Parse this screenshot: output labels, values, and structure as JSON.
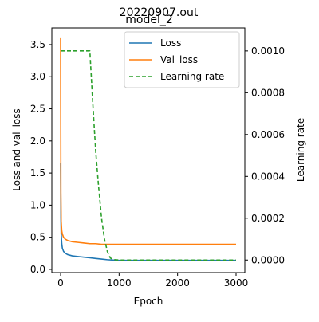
{
  "chart_data": {
    "type": "line",
    "title": "20220907.out",
    "subtitle": "model_2",
    "xlabel": "Epoch",
    "ylabel": "Loss and val_loss",
    "ylabel_right": "Learning rate",
    "xlim": [
      -150,
      3150
    ],
    "ylim": [
      -0.05,
      3.76
    ],
    "ylim_right": [
      -6e-05,
      0.00111
    ],
    "x_ticks": [
      0,
      1000,
      2000,
      3000
    ],
    "y_ticks": [
      0.0,
      0.5,
      1.0,
      1.5,
      2.0,
      2.5,
      3.0,
      3.5
    ],
    "y_right_ticks": [
      0.0,
      0.0002,
      0.0004,
      0.0006,
      0.0008,
      0.001
    ],
    "grid": false,
    "legend_position": "top-right",
    "colors": {
      "loss": "#1f77b4",
      "val_loss": "#ff7f0e",
      "learning_rate": "#2ca02c"
    },
    "series": [
      {
        "name": "Loss",
        "axis": "left",
        "style": "solid",
        "x": [
          0,
          5,
          10,
          20,
          30,
          50,
          80,
          120,
          200,
          300,
          400,
          500,
          600,
          700,
          800,
          900,
          1000,
          1500,
          2000,
          2500,
          3000
        ],
        "values": [
          1.65,
          0.8,
          0.55,
          0.4,
          0.33,
          0.28,
          0.25,
          0.23,
          0.21,
          0.2,
          0.19,
          0.18,
          0.17,
          0.16,
          0.15,
          0.145,
          0.14,
          0.14,
          0.14,
          0.14,
          0.14
        ]
      },
      {
        "name": "Val_loss",
        "axis": "left",
        "style": "solid",
        "x": [
          0,
          2,
          5,
          10,
          20,
          30,
          50,
          80,
          120,
          200,
          300,
          400,
          500,
          600,
          700,
          800,
          1000,
          1500,
          2000,
          2500,
          3000
        ],
        "values": [
          3.6,
          2.5,
          1.2,
          0.75,
          0.6,
          0.55,
          0.5,
          0.47,
          0.45,
          0.43,
          0.42,
          0.41,
          0.4,
          0.4,
          0.39,
          0.39,
          0.39,
          0.39,
          0.39,
          0.39,
          0.39
        ]
      },
      {
        "name": "Learning rate",
        "axis": "right",
        "style": "dashed",
        "x": [
          0,
          500,
          550,
          600,
          650,
          700,
          750,
          800,
          850,
          900,
          1000,
          1500,
          2000,
          2500,
          3000
        ],
        "values": [
          0.001,
          0.001,
          0.00075,
          0.00052,
          0.00035,
          0.0002,
          0.0001,
          4e-05,
          1e-05,
          2e-06,
          0.0,
          0.0,
          0.0,
          0.0,
          0.0
        ]
      }
    ]
  }
}
